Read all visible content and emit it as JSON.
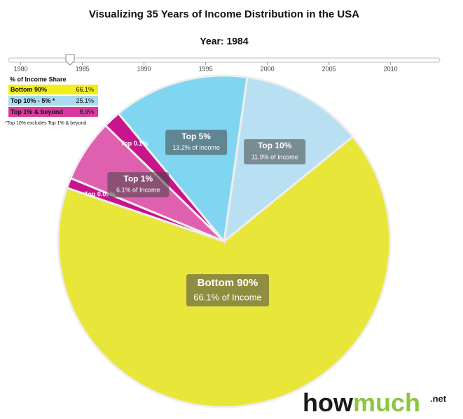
{
  "chart_data": {
    "type": "pie",
    "title": "Visualizing 35 Years of Income Distribution in the USA",
    "subtitle": "Year: 1984",
    "slider": {
      "xlim": [
        1979,
        2014
      ],
      "xticks": [
        1980,
        1985,
        1990,
        1995,
        2000,
        2005,
        2010
      ],
      "value": 1984
    },
    "categories": [
      "Top 10%",
      "Bottom 90%",
      "Top 0.01%",
      "Top 1%",
      "Top 0.1%",
      "Top 5%"
    ],
    "values": [
      11.9,
      66.1,
      1.0,
      6.1,
      1.7,
      13.2
    ],
    "value_labels": [
      "11.9% of Income",
      "66.1% of Income",
      null,
      "6.1% of Income",
      null,
      "13.2% of Income"
    ],
    "colors": [
      "#b9e0f2",
      "#e9e63a",
      "#c8158c",
      "#e060b0",
      "#c8158c",
      "#80d6f1"
    ],
    "legend": {
      "title": "% of Income Share",
      "rows": [
        {
          "label": "Bottom 90%",
          "value": "66.1%",
          "color": "#f2ee1c"
        },
        {
          "label": "Top 10% - 5% *",
          "value": "25.1%",
          "color": "#a8dcf2"
        },
        {
          "label": "Top 1% & beyond",
          "value": "8.9%",
          "color": "#d9399e"
        }
      ],
      "note": "*Top 10% excludes Top 1% & beyond"
    }
  },
  "logo": {
    "part1": "how",
    "part2": "much",
    "suffix": ".net"
  }
}
